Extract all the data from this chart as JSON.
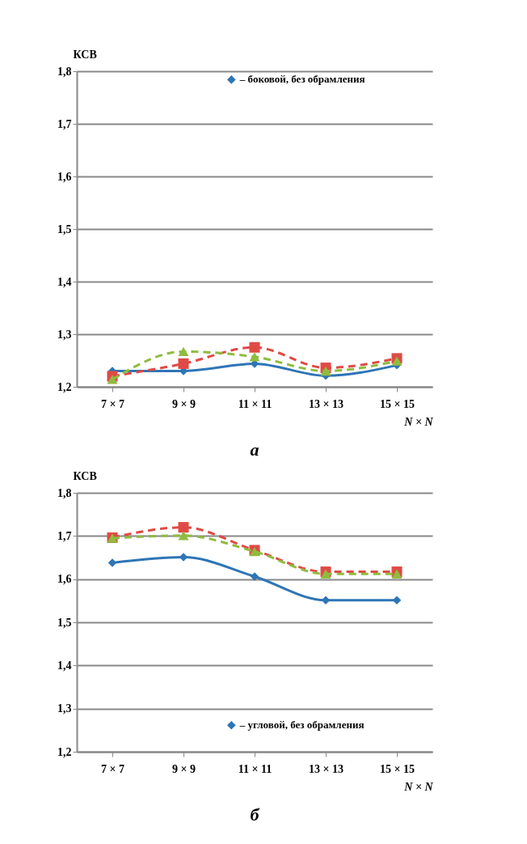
{
  "chart_data": [
    {
      "type": "line",
      "ylabel": "КСВ",
      "xlabel": "N × N",
      "categories": [
        "7 × 7",
        "9 × 9",
        "11 × 11",
        "13 × 13",
        "15 × 15"
      ],
      "series": [
        {
          "name": "– боковой, без обрамления",
          "color": "#2e75b6",
          "marker": "diamond",
          "line_style": "solid",
          "values": [
            1.23,
            1.23,
            1.244,
            1.221,
            1.241
          ]
        },
        {
          "color": "#e04a45",
          "marker": "square",
          "line_style": "dashed",
          "values": [
            1.22,
            1.244,
            1.275,
            1.236,
            1.254
          ]
        },
        {
          "color": "#8fbc3f",
          "marker": "triangle",
          "line_style": "dashed",
          "values": [
            1.214,
            1.267,
            1.257,
            1.23,
            1.249
          ]
        }
      ],
      "ylim": [
        1.2,
        1.8
      ],
      "yticks": [
        {
          "value": 1.2,
          "label": "1,2"
        },
        {
          "value": 1.3,
          "label": "1,3"
        },
        {
          "value": 1.4,
          "label": "1,4"
        },
        {
          "value": 1.5,
          "label": "1,5"
        },
        {
          "value": 1.6,
          "label": "1,6"
        },
        {
          "value": 1.7,
          "label": "1,7"
        },
        {
          "value": 1.8,
          "label": "1,8"
        }
      ],
      "grid": "y",
      "legend": "top right",
      "annotations": [
        "а"
      ]
    },
    {
      "type": "line",
      "ylabel": "КСВ",
      "xlabel": "N × N",
      "categories": [
        "7 × 7",
        "9 × 9",
        "11 × 11",
        "13 × 13",
        "15 × 15"
      ],
      "series": [
        {
          "name": "– угловой, без обрамления",
          "color": "#2e75b6",
          "marker": "diamond",
          "line_style": "solid",
          "values": [
            1.638,
            1.651,
            1.606,
            1.551,
            1.551
          ]
        },
        {
          "color": "#e04a45",
          "marker": "square",
          "line_style": "dashed",
          "values": [
            1.696,
            1.72,
            1.667,
            1.617,
            1.617
          ]
        },
        {
          "color": "#8fbc3f",
          "marker": "triangle",
          "line_style": "dashed",
          "values": [
            1.695,
            1.701,
            1.664,
            1.612,
            1.612
          ]
        }
      ],
      "ylim": [
        1.2,
        1.8
      ],
      "yticks": [
        {
          "value": 1.2,
          "label": "1,2"
        },
        {
          "value": 1.3,
          "label": "1,3"
        },
        {
          "value": 1.4,
          "label": "1,4"
        },
        {
          "value": 1.5,
          "label": "1,5"
        },
        {
          "value": 1.6,
          "label": "1,6"
        },
        {
          "value": 1.7,
          "label": "1,7"
        },
        {
          "value": 1.8,
          "label": "1,8"
        }
      ],
      "grid": "y",
      "legend": "bottom right",
      "annotations": [
        "б"
      ]
    }
  ]
}
